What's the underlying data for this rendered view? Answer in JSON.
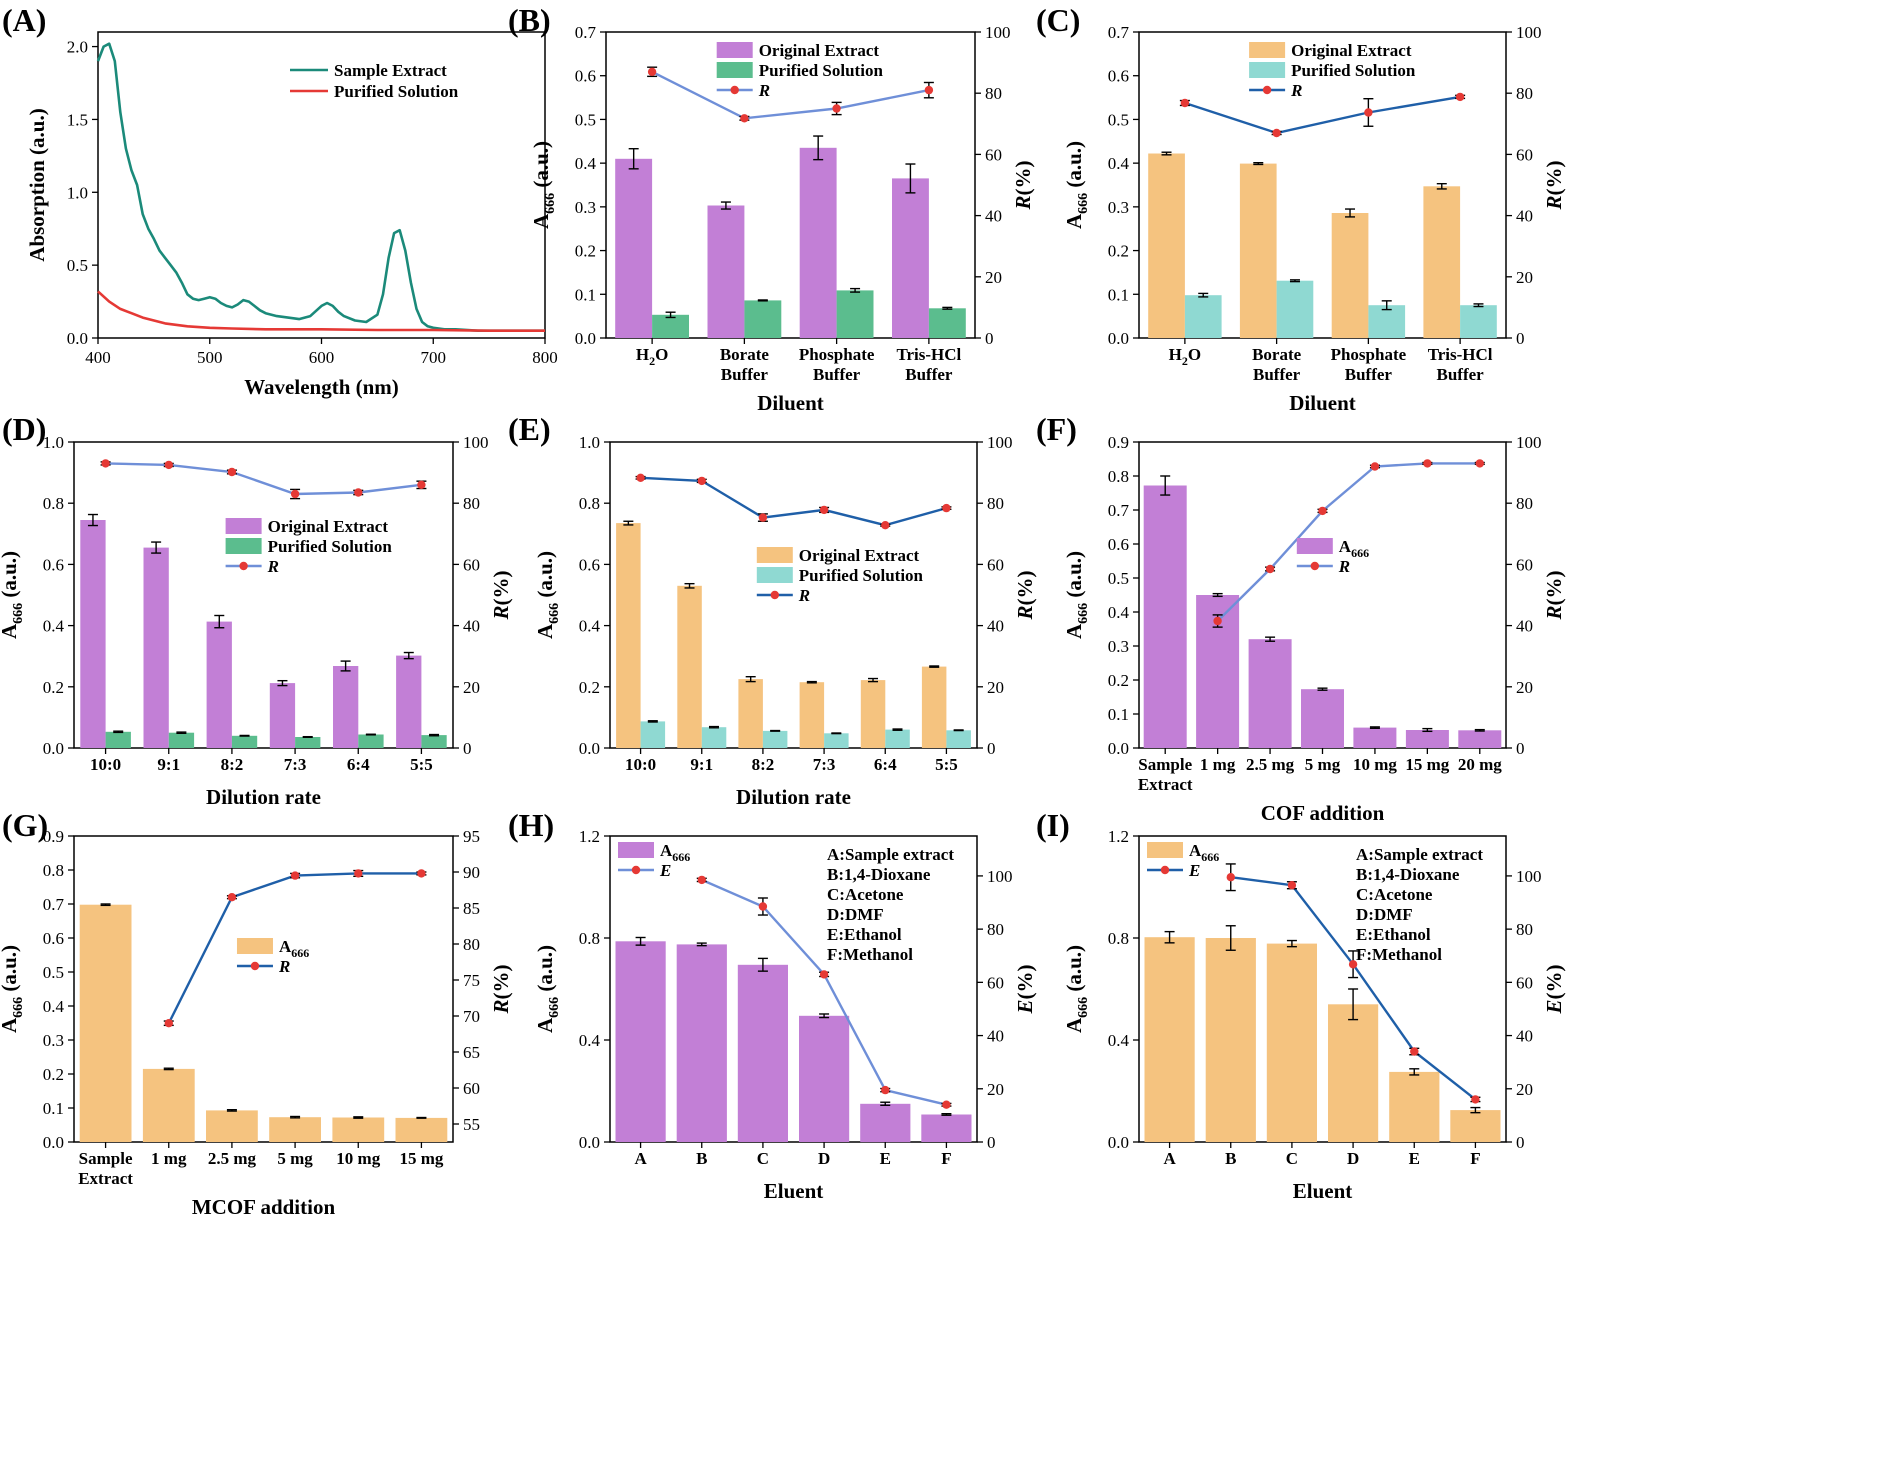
{
  "colors": {
    "purple": "#c27fd6",
    "green": "#5bbd8e",
    "orange": "#f5c37f",
    "cyan": "#8fd9d2",
    "line_light": "#6f8fd8",
    "line_dark": "#1f5fa8",
    "marker": "#e53935",
    "teal": "#1b8a7a",
    "red": "#e53935"
  },
  "chart_data": [
    {
      "panel": "(A)",
      "type": "line",
      "xlabel": "Wavelength (nm)",
      "ylabel": "Absorption (a.u.)",
      "xlim": [
        400,
        800
      ],
      "ylim": [
        0,
        2.1
      ],
      "xticks": [
        "400",
        "500",
        "600",
        "700",
        "800"
      ],
      "yticks": [
        "0.0",
        "0.5",
        "1.0",
        "1.5",
        "2.0"
      ],
      "series": [
        {
          "name": "Sample Extract",
          "color": "#1b8a7a",
          "x": [
            400,
            405,
            410,
            415,
            420,
            425,
            430,
            435,
            440,
            445,
            450,
            455,
            460,
            465,
            470,
            475,
            480,
            485,
            490,
            495,
            500,
            505,
            510,
            515,
            520,
            525,
            530,
            535,
            540,
            545,
            550,
            560,
            570,
            580,
            590,
            600,
            605,
            610,
            615,
            620,
            630,
            640,
            650,
            655,
            660,
            665,
            670,
            675,
            680,
            685,
            690,
            695,
            700,
            710,
            720,
            740,
            760,
            780,
            800
          ],
          "y": [
            1.9,
            2.0,
            2.02,
            1.9,
            1.55,
            1.3,
            1.15,
            1.05,
            0.85,
            0.75,
            0.68,
            0.6,
            0.55,
            0.5,
            0.45,
            0.38,
            0.3,
            0.27,
            0.26,
            0.27,
            0.28,
            0.27,
            0.24,
            0.22,
            0.21,
            0.23,
            0.26,
            0.25,
            0.22,
            0.19,
            0.17,
            0.15,
            0.14,
            0.13,
            0.15,
            0.22,
            0.24,
            0.22,
            0.18,
            0.15,
            0.12,
            0.11,
            0.16,
            0.3,
            0.55,
            0.72,
            0.74,
            0.6,
            0.38,
            0.2,
            0.11,
            0.08,
            0.07,
            0.06,
            0.06,
            0.05,
            0.05,
            0.05,
            0.05
          ]
        },
        {
          "name": "Purified Solution",
          "color": "#e53935",
          "x": [
            400,
            410,
            420,
            430,
            440,
            450,
            460,
            480,
            500,
            520,
            550,
            600,
            650,
            700,
            750,
            800
          ],
          "y": [
            0.32,
            0.25,
            0.2,
            0.17,
            0.14,
            0.12,
            0.1,
            0.08,
            0.07,
            0.065,
            0.06,
            0.06,
            0.055,
            0.055,
            0.05,
            0.05
          ]
        }
      ]
    },
    {
      "panel": "(B)",
      "type": "bar+line",
      "xlabel": "Diluent",
      "ylabel_main": "A",
      "ylabel_sub": "666",
      "ylabel_tail": " (a.u.)",
      "y2label": "R(%)",
      "ylim": [
        0,
        0.7
      ],
      "y2lim": [
        0,
        100
      ],
      "yticks": [
        "0.0",
        "0.1",
        "0.2",
        "0.3",
        "0.4",
        "0.5",
        "0.6",
        "0.7"
      ],
      "y2ticks": [
        "0",
        "20",
        "40",
        "60",
        "80",
        "100"
      ],
      "categories": [
        [
          "H2O"
        ],
        [
          "Borate",
          "Buffer"
        ],
        [
          "Phosphate",
          "Buffer"
        ],
        [
          "Tris-HCl",
          "Buffer"
        ]
      ],
      "bar_series": [
        {
          "name": "Original Extract",
          "color": "purple",
          "values": [
            0.41,
            0.303,
            0.435,
            0.365
          ],
          "errors": [
            0.023,
            0.008,
            0.027,
            0.033
          ]
        },
        {
          "name": "Purified Solution",
          "color": "green",
          "values": [
            0.053,
            0.086,
            0.109,
            0.068
          ],
          "errors": [
            0.006,
            0.001,
            0.004,
            0.002
          ]
        }
      ],
      "line": {
        "name": "R",
        "color": "line_light",
        "values": [
          87,
          71.8,
          75,
          81
        ],
        "errors": [
          1.5,
          0.6,
          2,
          2.5
        ]
      },
      "legend": "top-center"
    },
    {
      "panel": "(C)",
      "type": "bar+line",
      "xlabel": "Diluent",
      "ylabel_main": "A",
      "ylabel_sub": "666",
      "ylabel_tail": " (a.u.)",
      "y2label": "R(%)",
      "ylim": [
        0,
        0.7
      ],
      "y2lim": [
        0,
        100
      ],
      "yticks": [
        "0.0",
        "0.1",
        "0.2",
        "0.3",
        "0.4",
        "0.5",
        "0.6",
        "0.7"
      ],
      "y2ticks": [
        "0",
        "20",
        "40",
        "60",
        "80",
        "100"
      ],
      "categories": [
        [
          "H2O"
        ],
        [
          "Borate",
          "Buffer"
        ],
        [
          "Phosphate",
          "Buffer"
        ],
        [
          "Tris-HCl",
          "Buffer"
        ]
      ],
      "bar_series": [
        {
          "name": "Original Extract",
          "color": "orange",
          "values": [
            0.422,
            0.399,
            0.286,
            0.347
          ],
          "errors": [
            0.003,
            0.002,
            0.009,
            0.006
          ]
        },
        {
          "name": "Purified Solution",
          "color": "cyan",
          "values": [
            0.098,
            0.131,
            0.075,
            0.075
          ],
          "errors": [
            0.004,
            0.002,
            0.01,
            0.003
          ]
        }
      ],
      "line": {
        "name": "R",
        "color": "line_dark",
        "values": [
          76.8,
          67,
          73.7,
          78.8
        ],
        "errors": [
          0.8,
          0.5,
          4.5,
          0.5
        ]
      },
      "legend": "top-center"
    },
    {
      "panel": "(D)",
      "type": "bar+line",
      "xlabel": "Dilution rate",
      "ylabel_main": "A",
      "ylabel_sub": "666",
      "ylabel_tail": " (a.u.)",
      "y2label": "R(%)",
      "ylim": [
        0,
        1.0
      ],
      "y2lim": [
        0,
        100
      ],
      "yticks": [
        "0.0",
        "0.2",
        "0.4",
        "0.6",
        "0.8",
        "1.0"
      ],
      "y2ticks": [
        "0",
        "20",
        "40",
        "60",
        "80",
        "100"
      ],
      "categories": [
        [
          "10:0"
        ],
        [
          "9:1"
        ],
        [
          "8:2"
        ],
        [
          "7:3"
        ],
        [
          "6:4"
        ],
        [
          "5:5"
        ]
      ],
      "bar_series": [
        {
          "name": "Original Extract",
          "color": "purple",
          "values": [
            0.745,
            0.655,
            0.413,
            0.212,
            0.268,
            0.302
          ],
          "errors": [
            0.018,
            0.018,
            0.02,
            0.008,
            0.016,
            0.01
          ]
        },
        {
          "name": "Purified Solution",
          "color": "green",
          "values": [
            0.053,
            0.05,
            0.04,
            0.036,
            0.044,
            0.042
          ],
          "errors": [
            0.002,
            0.002,
            0.001,
            0.001,
            0.001,
            0.002
          ]
        }
      ],
      "line": {
        "name": "R",
        "color": "line_light",
        "values": [
          93,
          92.5,
          90.2,
          83,
          83.5,
          86
        ],
        "errors": [
          0.5,
          0.5,
          0.6,
          1.5,
          0.7,
          1.2
        ]
      },
      "legend": "middle-right"
    },
    {
      "panel": "(E)",
      "type": "bar+line",
      "xlabel": "Dilution rate",
      "ylabel_main": "A",
      "ylabel_sub": "666",
      "ylabel_tail": " (a.u.)",
      "y2label": "R(%)",
      "ylim": [
        0,
        1.0
      ],
      "y2lim": [
        0,
        100
      ],
      "yticks": [
        "0.0",
        "0.2",
        "0.4",
        "0.6",
        "0.8",
        "1.0"
      ],
      "y2ticks": [
        "0",
        "20",
        "40",
        "60",
        "80",
        "100"
      ],
      "categories": [
        [
          "10:0"
        ],
        [
          "9:1"
        ],
        [
          "8:2"
        ],
        [
          "7:3"
        ],
        [
          "6:4"
        ],
        [
          "5:5"
        ]
      ],
      "bar_series": [
        {
          "name": "Original Extract",
          "color": "orange",
          "values": [
            0.735,
            0.53,
            0.225,
            0.215,
            0.222,
            0.266
          ],
          "errors": [
            0.006,
            0.007,
            0.008,
            0.002,
            0.005,
            0.002
          ]
        },
        {
          "name": "Purified Solution",
          "color": "cyan",
          "values": [
            0.087,
            0.068,
            0.056,
            0.048,
            0.06,
            0.058
          ],
          "errors": [
            0.002,
            0.002,
            0.001,
            0.001,
            0.002,
            0.001
          ]
        }
      ],
      "line": {
        "name": "R",
        "color": "line_dark",
        "values": [
          88.3,
          87.3,
          75.3,
          77.8,
          72.8,
          78.4
        ],
        "errors": [
          0.4,
          0.5,
          1.2,
          0.8,
          0.3,
          0.4
        ]
      },
      "legend": "middle-right"
    },
    {
      "panel": "(F)",
      "type": "bar+line",
      "xlabel": "COF addition",
      "ylabel_main": "A",
      "ylabel_sub": "666",
      "ylabel_tail": " (a.u.)",
      "y2label": "R(%)",
      "ylim": [
        0,
        0.9
      ],
      "y2lim": [
        0,
        100
      ],
      "yticks": [
        "0.0",
        "0.1",
        "0.2",
        "0.3",
        "0.4",
        "0.5",
        "0.6",
        "0.7",
        "0.8",
        "0.9"
      ],
      "y2ticks": [
        "0",
        "20",
        "40",
        "60",
        "80",
        "100"
      ],
      "categories": [
        [
          "Sample",
          "Extract"
        ],
        [
          "1 mg"
        ],
        [
          "2.5 mg"
        ],
        [
          "5 mg"
        ],
        [
          "10 mg"
        ],
        [
          "15 mg"
        ],
        [
          "20 mg"
        ]
      ],
      "bar_series": [
        {
          "name": "A666",
          "legend_main": "A",
          "legend_sub": "666",
          "color": "purple",
          "values": [
            0.772,
            0.45,
            0.32,
            0.173,
            0.06,
            0.053,
            0.052
          ],
          "errors": [
            0.028,
            0.004,
            0.006,
            0.003,
            0.002,
            0.004,
            0.002
          ]
        }
      ],
      "line": {
        "name": "R",
        "color": "line_light",
        "start": 1,
        "values": [
          41.5,
          58.5,
          77.5,
          92,
          93,
          93
        ],
        "errors": [
          2,
          0.6,
          0.5,
          0.4,
          0.3,
          0.3
        ]
      },
      "legend": "middle-center"
    },
    {
      "panel": "(G)",
      "type": "bar+line",
      "xlabel": "MCOF addition",
      "ylabel_main": "A",
      "ylabel_sub": "666",
      "ylabel_tail": " (a.u.)",
      "y2label": "R(%)",
      "ylim": [
        0,
        0.9
      ],
      "y2lim": [
        52.5,
        95
      ],
      "yticks": [
        "0.0",
        "0.1",
        "0.2",
        "0.3",
        "0.4",
        "0.5",
        "0.6",
        "0.7",
        "0.8",
        "0.9"
      ],
      "y2ticks": [
        "55",
        "60",
        "65",
        "70",
        "75",
        "80",
        "85",
        "90",
        "95"
      ],
      "categories": [
        [
          "Sample",
          "Extract"
        ],
        [
          "1 mg"
        ],
        [
          "2.5 mg"
        ],
        [
          "5 mg"
        ],
        [
          "10 mg"
        ],
        [
          "15 mg"
        ]
      ],
      "bar_series": [
        {
          "name": "A666",
          "legend_main": "A",
          "legend_sub": "666",
          "color": "orange",
          "values": [
            0.698,
            0.215,
            0.093,
            0.073,
            0.072,
            0.071
          ],
          "errors": [
            0.002,
            0.002,
            0.002,
            0.002,
            0.002,
            0.001
          ]
        }
      ],
      "line": {
        "name": "R",
        "color": "line_dark",
        "start": 1,
        "values": [
          69,
          86.5,
          89.5,
          89.8,
          89.8
        ],
        "errors": [
          0.3,
          0.2,
          0.3,
          0.4,
          0.2
        ]
      },
      "legend": "middle-center"
    },
    {
      "panel": "(H)",
      "type": "bar+line",
      "xlabel": "Eluent",
      "ylabel_main": "A",
      "ylabel_sub": "666",
      "ylabel_tail": " (a.u.)",
      "y2label": "E(%)",
      "ylim": [
        0,
        1.2
      ],
      "y2lim": [
        0,
        115
      ],
      "yticks": [
        "0.0",
        "0.4",
        "0.8",
        "1.2"
      ],
      "y2ticks": [
        "0",
        "20",
        "40",
        "60",
        "80",
        "100"
      ],
      "categories": [
        [
          "A"
        ],
        [
          "B"
        ],
        [
          "C"
        ],
        [
          "D"
        ],
        [
          "E"
        ],
        [
          "F"
        ]
      ],
      "bar_series": [
        {
          "name": "A666",
          "legend_main": "A",
          "legend_sub": "666",
          "color": "purple",
          "values": [
            0.787,
            0.775,
            0.695,
            0.495,
            0.15,
            0.108
          ],
          "errors": [
            0.015,
            0.005,
            0.025,
            0.007,
            0.006,
            0.003
          ]
        }
      ],
      "line": {
        "name": "E",
        "color": "line_light",
        "start": 1,
        "values": [
          98.5,
          88.5,
          63,
          19.5,
          14
        ],
        "errors": [
          0.6,
          3.2,
          0.8,
          0.6,
          0.5
        ]
      },
      "legend": "top-left",
      "notes": [
        "A:Sample extract",
        "B:1,4-Dioxane",
        "C:Acetone",
        "D:DMF",
        "E:Ethanol",
        "F:Methanol"
      ]
    },
    {
      "panel": "(I)",
      "type": "bar+line",
      "xlabel": "Eluent",
      "ylabel_main": "A",
      "ylabel_sub": "666",
      "ylabel_tail": " (a.u.)",
      "y2label": "E(%)",
      "ylim": [
        0,
        1.2
      ],
      "y2lim": [
        0,
        115
      ],
      "yticks": [
        "0.0",
        "0.4",
        "0.8",
        "1.2"
      ],
      "y2ticks": [
        "0",
        "20",
        "40",
        "60",
        "80",
        "100"
      ],
      "categories": [
        [
          "A"
        ],
        [
          "B"
        ],
        [
          "C"
        ],
        [
          "D"
        ],
        [
          "E"
        ],
        [
          "F"
        ]
      ],
      "bar_series": [
        {
          "name": "A666",
          "legend_main": "A",
          "legend_sub": "666",
          "color": "orange",
          "values": [
            0.803,
            0.8,
            0.778,
            0.54,
            0.275,
            0.125
          ],
          "errors": [
            0.022,
            0.048,
            0.012,
            0.06,
            0.012,
            0.01
          ]
        }
      ],
      "line": {
        "name": "E",
        "color": "line_dark",
        "start": 1,
        "values": [
          99.5,
          96.5,
          66.8,
          34,
          16
        ],
        "errors": [
          5,
          1.3,
          5,
          1.2,
          0.8
        ]
      },
      "legend": "top-left",
      "notes": [
        "A:Sample extract",
        "B:1,4-Dioxane",
        "C:Acetone",
        "D:DMF",
        "E:Ethanol",
        "F:Methanol"
      ]
    }
  ]
}
